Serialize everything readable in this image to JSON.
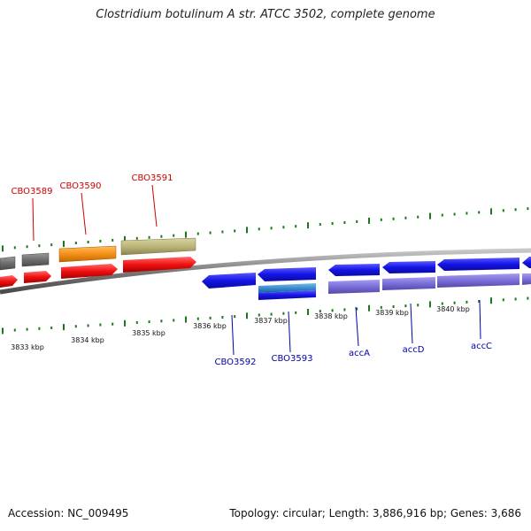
{
  "title": "Clostridium botulinum A str. ATCC 3502, complete genome",
  "footer": {
    "accession": "Accession: NC_009495",
    "summary": "Topology: circular; Length: 3,886,916 bp; Genes: 3,686"
  },
  "colors": {
    "forward_label": "#cc0000",
    "reverse_label": "#0000aa",
    "backbone": "#7a7a7a",
    "tick": "#1a7a1a"
  },
  "ticks": [
    "3833 kbp",
    "3834 kbp",
    "3835 kbp",
    "3836 kbp",
    "3837 kbp",
    "3838 kbp",
    "3839 kbp",
    "3840 kbp"
  ],
  "genes_forward": [
    {
      "name": "CBO3589",
      "color": "#cc0000"
    },
    {
      "name": "CBO3590",
      "color": "#cc0000"
    },
    {
      "name": "CBO3591",
      "color": "#cc0000"
    }
  ],
  "genes_reverse": [
    {
      "name": "CBO3592",
      "color": "#0000aa"
    },
    {
      "name": "CBO3593",
      "color": "#0000aa"
    },
    {
      "name": "accA",
      "color": "#0000aa"
    },
    {
      "name": "accD",
      "color": "#0000aa"
    },
    {
      "name": "accC",
      "color": "#0000aa"
    }
  ]
}
